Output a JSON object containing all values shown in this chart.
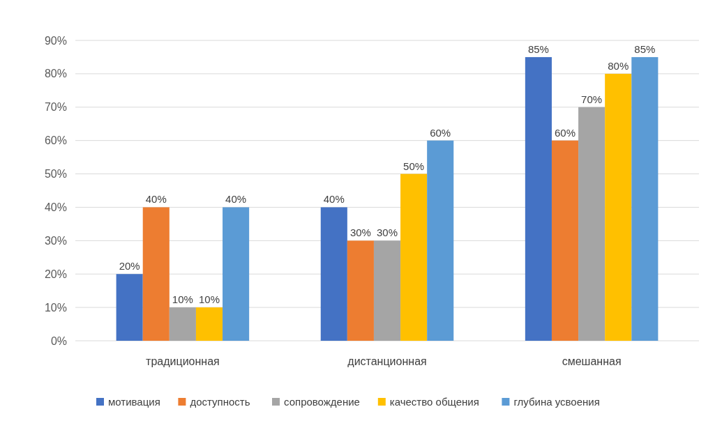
{
  "chart_data": {
    "type": "bar",
    "categories": [
      "традиционная",
      "дистанционная",
      "смешанная"
    ],
    "series": [
      {
        "name": "мотивация",
        "color": "#4472c4",
        "values": [
          20,
          40,
          85
        ],
        "value_labels": [
          "20%",
          "40%",
          "85%"
        ]
      },
      {
        "name": "доступность",
        "color": "#ed7d31",
        "values": [
          40,
          30,
          60
        ],
        "value_labels": [
          "40%",
          "30%",
          "60%"
        ]
      },
      {
        "name": "сопровождение",
        "color": "#a5a5a5",
        "values": [
          10,
          30,
          70
        ],
        "value_labels": [
          "10%",
          "30%",
          "70%"
        ]
      },
      {
        "name": "качество общения",
        "color": "#ffc000",
        "values": [
          10,
          50,
          80
        ],
        "value_labels": [
          "10%",
          "50%",
          "80%"
        ]
      },
      {
        "name": "глубина усвоения",
        "color": "#5b9bd5",
        "values": [
          40,
          60,
          85
        ],
        "value_labels": [
          "40%",
          "60%",
          "85%"
        ]
      }
    ],
    "ylim": [
      0,
      90
    ],
    "yticks": [
      {
        "value": 0,
        "label": "0%"
      },
      {
        "value": 10,
        "label": "10%"
      },
      {
        "value": 20,
        "label": "20%"
      },
      {
        "value": 30,
        "label": "30%"
      },
      {
        "value": 40,
        "label": "40%"
      },
      {
        "value": 50,
        "label": "50%"
      },
      {
        "value": 60,
        "label": "60%"
      },
      {
        "value": 70,
        "label": "70%"
      },
      {
        "value": 80,
        "label": "80%"
      },
      {
        "value": 90,
        "label": "90%"
      }
    ],
    "grid": "y",
    "legend": "bottom"
  }
}
